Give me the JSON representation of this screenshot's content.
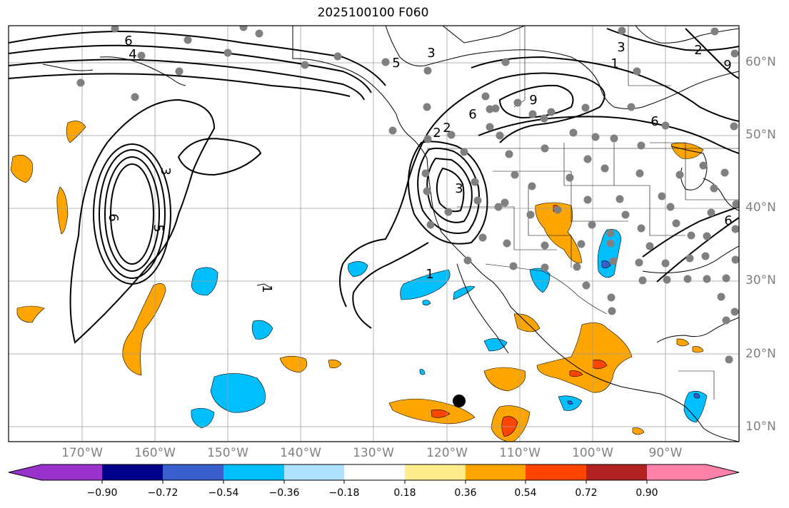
{
  "title": "2025100100 F060",
  "map": {
    "lat_labels": [
      "60°N",
      "50°N",
      "40°N",
      "30°N",
      "20°N",
      "10°N"
    ],
    "lon_labels": [
      "170°W",
      "160°W",
      "150°W",
      "140°W",
      "130°W",
      "120°W",
      "110°W",
      "100°W",
      "90°W"
    ],
    "contour_labels": [
      "6",
      "4",
      "3",
      "3",
      "5",
      "6",
      "5",
      "1",
      "1",
      "2",
      "6",
      "2",
      "3",
      "3",
      "9",
      "1",
      "6",
      "2",
      "9",
      "6"
    ],
    "colors": {
      "land_line": "#000000",
      "grid": "#9e9e9e",
      "station": "#808080",
      "marker": "#000000"
    }
  },
  "colorbar": {
    "tick_labels": [
      "−0.90",
      "−0.72",
      "−0.54",
      "−0.36",
      "−0.18",
      "0.18",
      "0.36",
      "0.54",
      "0.72",
      "0.90"
    ],
    "colors": [
      "#9932cc",
      "#00008b",
      "#3a5fcd",
      "#00bfff",
      "#b0e2ff",
      "#ffffff",
      "#ffec8b",
      "#ffa500",
      "#ff4500",
      "#b22222",
      "#ff82ab"
    ]
  }
}
